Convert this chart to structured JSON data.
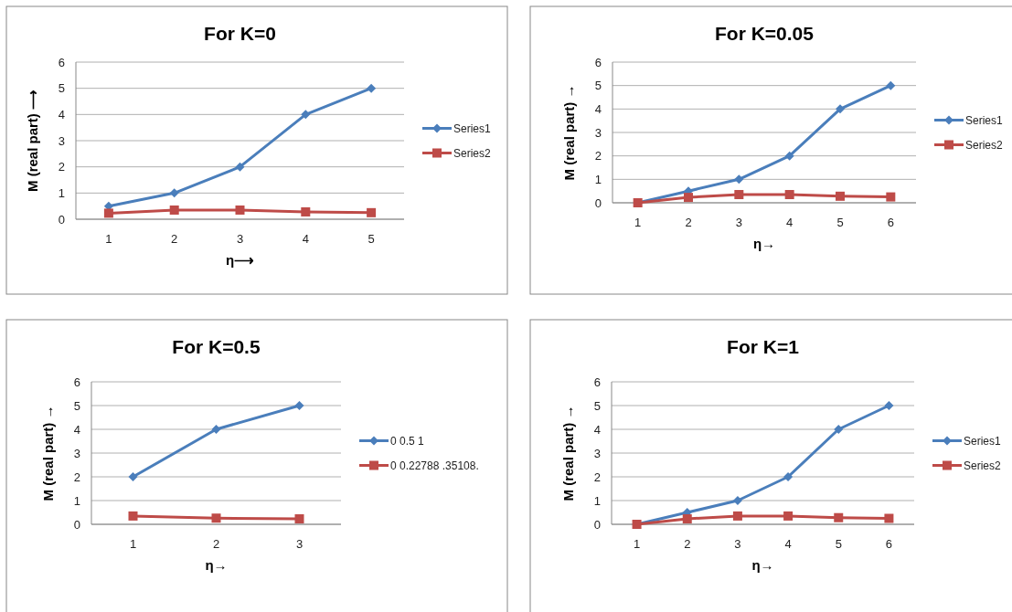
{
  "chart_data": [
    {
      "type": "line",
      "title": "For K=0",
      "xlabel": "η⟶",
      "ylabel": "M  (real part) ⟶",
      "categories": [
        "1",
        "2",
        "3",
        "4",
        "5"
      ],
      "ylim": [
        0,
        6
      ],
      "yticks": [
        0,
        1,
        2,
        3,
        4,
        5,
        6
      ],
      "grid": "y",
      "legend": "right",
      "line_style": "solid",
      "series": [
        {
          "name": "Series1",
          "color": "#4a7ebb",
          "marker": "diamond",
          "values": [
            0.5,
            1,
            2,
            4,
            5
          ]
        },
        {
          "name": "Series2",
          "color": "#be4b48",
          "marker": "square",
          "values": [
            0.23,
            0.35,
            0.35,
            0.28,
            0.25
          ]
        }
      ]
    },
    {
      "type": "line",
      "title": "For K=0.05",
      "xlabel": "η→",
      "ylabel": "M  (real part) →",
      "categories": [
        "1",
        "2",
        "3",
        "4",
        "5",
        "6"
      ],
      "ylim": [
        0,
        6
      ],
      "yticks": [
        0,
        1,
        2,
        3,
        4,
        5,
        6
      ],
      "grid": "y",
      "legend": "right",
      "line_style": "solid",
      "series": [
        {
          "name": "Series1",
          "color": "#4a7ebb",
          "marker": "diamond",
          "values": [
            0,
            0.5,
            1,
            2,
            4,
            5
          ]
        },
        {
          "name": "Series2",
          "color": "#be4b48",
          "marker": "square",
          "values": [
            0,
            0.23,
            0.35,
            0.35,
            0.28,
            0.25
          ]
        }
      ]
    },
    {
      "type": "line",
      "title": "For K=0.5",
      "xlabel": "η→",
      "ylabel": "M  (real part) →",
      "categories": [
        "1",
        "2",
        "3"
      ],
      "ylim": [
        0,
        6
      ],
      "yticks": [
        0,
        1,
        2,
        3,
        4,
        5,
        6
      ],
      "grid": "y",
      "legend": "right",
      "line_style": "solid",
      "series": [
        {
          "name": "0 0.5 1",
          "color": "#4a7ebb",
          "marker": "diamond",
          "values": [
            2,
            4,
            5
          ]
        },
        {
          "name": "0 0.22788 .35108.",
          "color": "#be4b48",
          "marker": "square",
          "values": [
            0.35,
            0.26,
            0.23
          ]
        }
      ]
    },
    {
      "type": "line",
      "title": "For K=1",
      "xlabel": "η→",
      "ylabel": "M  (real part) →",
      "categories": [
        "1",
        "2",
        "3",
        "4",
        "5",
        "6"
      ],
      "ylim": [
        0,
        6
      ],
      "yticks": [
        0,
        1,
        2,
        3,
        4,
        5,
        6
      ],
      "grid": "y",
      "legend": "right",
      "line_style": "solid",
      "series": [
        {
          "name": "Series1",
          "color": "#4a7ebb",
          "marker": "diamond",
          "values": [
            0,
            0.5,
            1,
            2,
            4,
            5
          ]
        },
        {
          "name": "Series2",
          "color": "#be4b48",
          "marker": "square",
          "values": [
            0,
            0.23,
            0.35,
            0.35,
            0.28,
            0.25
          ]
        }
      ]
    }
  ]
}
